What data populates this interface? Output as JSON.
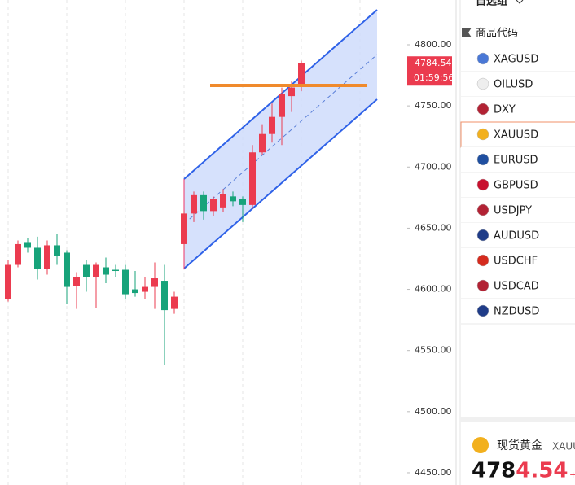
{
  "chart_data": {
    "type": "candlestick",
    "open": [
      4592,
      4620,
      4638,
      4634,
      4617,
      4636,
      4630,
      4603,
      4620,
      4610,
      4618,
      4616,
      4616,
      4600,
      4598,
      4602,
      4607,
      4584,
      4637,
      4662,
      4677,
      4664,
      4667,
      4676,
      4674,
      4669,
      4712,
      4727,
      4741,
      4758,
      4767
    ],
    "high": [
      4624,
      4640,
      4642,
      4643,
      4640,
      4645,
      4632,
      4614,
      4624,
      4622,
      4626,
      4620,
      4620,
      4615,
      4610,
      4622,
      4620,
      4598,
      4664,
      4680,
      4680,
      4676,
      4682,
      4680,
      4676,
      4718,
      4735,
      4752,
      4765,
      4770,
      4787
    ],
    "low": [
      4590,
      4618,
      4630,
      4608,
      4612,
      4620,
      4588,
      4584,
      4598,
      4585,
      4605,
      4610,
      4592,
      4594,
      4592,
      4584,
      4538,
      4580,
      4633,
      4655,
      4657,
      4660,
      4663,
      4668,
      4655,
      4666,
      4710,
      4720,
      4718,
      4745,
      4762
    ],
    "close": [
      4620,
      4637,
      4634,
      4617,
      4636,
      4627,
      4602,
      4610,
      4610,
      4620,
      4612,
      4615,
      4596,
      4597,
      4602,
      4609,
      4583,
      4594,
      4662,
      4677,
      4664,
      4674,
      4678,
      4672,
      4669,
      4712,
      4727,
      4741,
      4760,
      4765,
      4785
    ],
    "up_color": "#eb3b4f",
    "down_color": "#17a37a",
    "ylim": [
      4440,
      4836.6
    ],
    "yticks": [
      {
        "value": 4450,
        "label": "4450.00"
      },
      {
        "value": 4500,
        "label": "4500.00"
      },
      {
        "value": 4550,
        "label": "4550.00"
      },
      {
        "value": 4600,
        "label": "4600.00"
      },
      {
        "value": 4650,
        "label": "4650.00"
      },
      {
        "value": 4700,
        "label": "4700.00"
      },
      {
        "value": 4750,
        "label": "4750.00"
      },
      {
        "value": 4800,
        "label": "4800.00"
      }
    ],
    "last_price": 4784.54,
    "countdown": "01:59:56"
  },
  "panel": {
    "group_title": "自选组",
    "column_header": "商品代码",
    "symbols": [
      "XAGUSD",
      "OILUSD",
      "DXY",
      "XAUUSD",
      "EURUSD",
      "GBPUSD",
      "USDJPY",
      "AUDUSD",
      "USDCHF",
      "USDCAD",
      "NZDUSD"
    ],
    "selected": "XAUUSD"
  },
  "quote": {
    "name": "现货黄金",
    "symbol": "XAUUSD",
    "price_main": "478",
    "price_tail": "4.54",
    "change_sign": "+"
  }
}
